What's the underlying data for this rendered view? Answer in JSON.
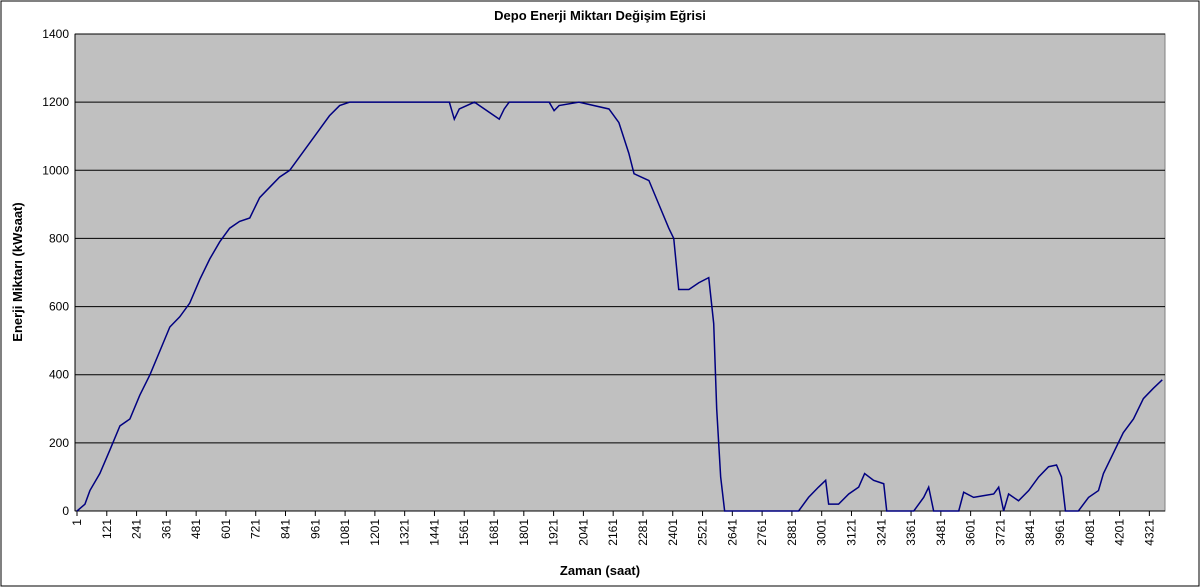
{
  "chart_data": {
    "type": "line",
    "title": "Depo Enerji Miktarı Değişim Eğrisi",
    "x_label": "Zaman (saat)",
    "y_label": "Enerji Miktarı (kWsaat)",
    "xlim": [
      1,
      4380
    ],
    "ylim": [
      0,
      1400
    ],
    "yticks": [
      0,
      200,
      400,
      600,
      800,
      1000,
      1200,
      1400
    ],
    "xticks": [
      1,
      121,
      241,
      361,
      481,
      601,
      721,
      841,
      961,
      1081,
      1201,
      1321,
      1441,
      1561,
      1681,
      1801,
      1921,
      2041,
      2161,
      2281,
      2401,
      2521,
      2641,
      2761,
      2881,
      3001,
      3121,
      3241,
      3361,
      3481,
      3601,
      3721,
      3841,
      3961,
      4081,
      4201,
      4321
    ],
    "grid": true,
    "background": "#c0c0c0",
    "x": [
      1,
      33,
      53,
      93,
      134,
      174,
      214,
      254,
      295,
      335,
      375,
      415,
      455,
      496,
      536,
      576,
      616,
      656,
      697,
      737,
      777,
      817,
      858,
      898,
      938,
      978,
      1018,
      1059,
      1099,
      1501,
      1521,
      1541,
      1602,
      1702,
      1722,
      1742,
      1903,
      1923,
      1943,
      2023,
      2144,
      2184,
      2224,
      2245,
      2305,
      2345,
      2385,
      2405,
      2425,
      2466,
      2506,
      2546,
      2566,
      2578,
      2594,
      2610,
      2908,
      2948,
      2988,
      3017,
      3029,
      3069,
      3110,
      3150,
      3174,
      3210,
      3251,
      3263,
      3372,
      3412,
      3432,
      3452,
      3553,
      3573,
      3613,
      3654,
      3694,
      3714,
      3734,
      3754,
      3794,
      3835,
      3875,
      3915,
      3947,
      3967,
      3983,
      4035,
      4076,
      4116,
      4136,
      4176,
      4216,
      4257,
      4297,
      4337,
      4373
    ],
    "series": [
      {
        "name": "Depo",
        "color": "#000080",
        "values": [
          0,
          20,
          60,
          110,
          180,
          250,
          270,
          340,
          400,
          470,
          540,
          570,
          610,
          680,
          740,
          790,
          830,
          850,
          860,
          920,
          950,
          980,
          1000,
          1040,
          1080,
          1120,
          1160,
          1190,
          1200,
          1200,
          1150,
          1180,
          1200,
          1150,
          1180,
          1200,
          1200,
          1175,
          1190,
          1200,
          1180,
          1140,
          1050,
          990,
          970,
          900,
          830,
          800,
          650,
          650,
          670,
          685,
          550,
          300,
          100,
          0,
          0,
          40,
          70,
          90,
          20,
          20,
          50,
          70,
          110,
          90,
          80,
          0,
          0,
          40,
          70,
          0,
          0,
          55,
          40,
          45,
          50,
          70,
          0,
          50,
          30,
          60,
          100,
          130,
          135,
          100,
          0,
          0,
          40,
          60,
          110,
          170,
          230,
          270,
          330,
          360,
          385
        ]
      }
    ]
  }
}
